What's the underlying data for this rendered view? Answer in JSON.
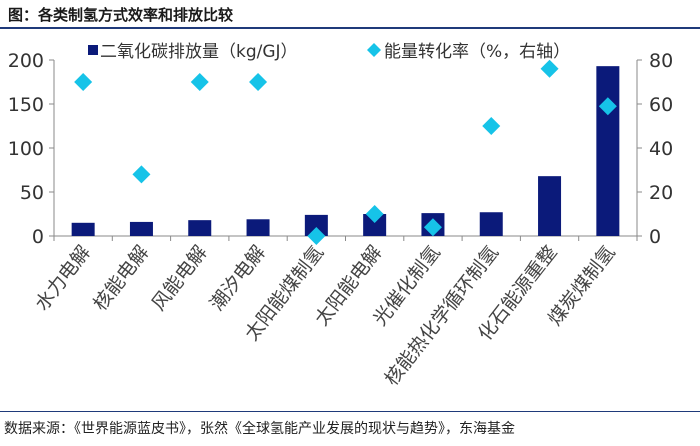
{
  "title": "图：各类制氢方式效率和排放比较",
  "source": "数据来源：《世界能源蓝皮书》，张然《全球氢能产业发展的现状与趋势》，东海基金",
  "colors": {
    "bar": "#0b1a7a",
    "marker": "#16c3e8"
  },
  "chart_data": {
    "type": "bar",
    "categories": [
      "水力电解",
      "核能电解",
      "风能电解",
      "潮汐电解",
      "太阳能煤制氢",
      "太阳能电解",
      "光催化制氢",
      "核能热化学循环制氢",
      "化石能源重整",
      "煤炭煤制氢"
    ],
    "series": [
      {
        "name": "二氧化碳排放量（kg/GJ）",
        "type": "bar",
        "axis": "left",
        "values": [
          15,
          16,
          18,
          19,
          24,
          25,
          26,
          27,
          68,
          193
        ]
      },
      {
        "name": "能量转化率（%，右轴）",
        "type": "scatter",
        "axis": "right",
        "values": [
          70,
          28,
          70,
          70,
          0,
          10,
          4,
          50,
          76,
          59
        ]
      }
    ],
    "y_left": {
      "min": 0,
      "max": 200,
      "ticks": [
        "0",
        "50",
        "100",
        "150",
        "200"
      ]
    },
    "y_right": {
      "min": 0,
      "max": 80,
      "ticks": [
        "0",
        "20",
        "40",
        "60",
        "80"
      ]
    },
    "legend": "top",
    "grid": false
  }
}
